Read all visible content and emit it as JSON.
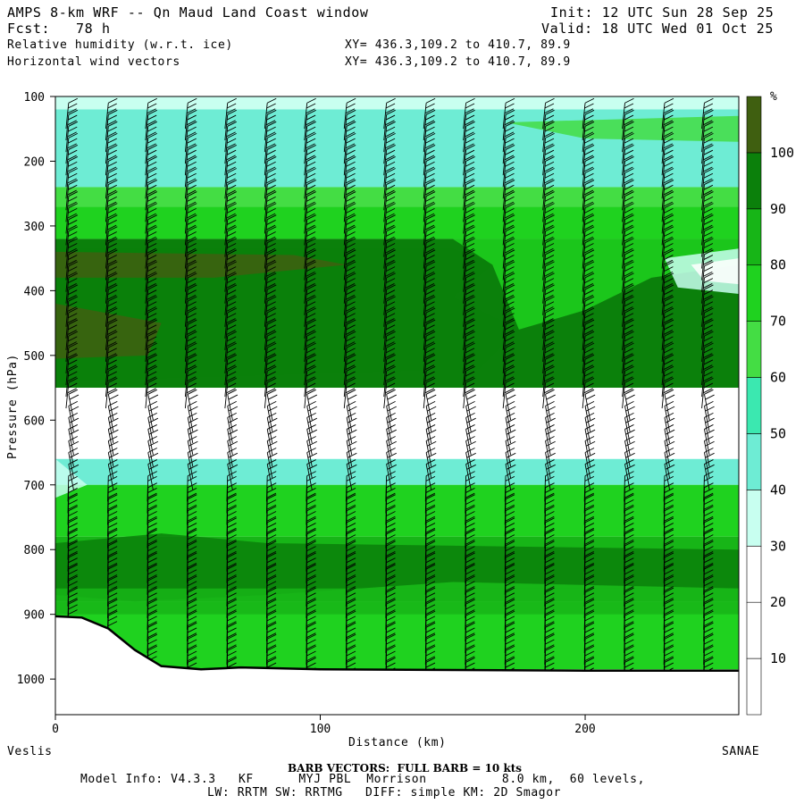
{
  "header": {
    "title": "AMPS 8-km WRF -- Qn Maud Land Coast window",
    "init": "Init: 12 UTC Sun 28 Sep 25",
    "fcst": "Fcst:   78 h",
    "valid": "Valid: 18 UTC Wed 01 Oct 25",
    "field1": "Relative humidity (w.r.t. ice)",
    "field1_xy": "XY= 436.3,109.2 to 410.7, 89.9",
    "field2": "Horizontal wind vectors",
    "field2_xy": "XY= 436.3,109.2 to 410.7, 89.9"
  },
  "chart_data": {
    "type": "heatmap",
    "title": "Relative humidity (w.r.t. ice) cross-section with horizontal wind barbs",
    "xlabel": "Distance (km)",
    "ylabel": "Pressure (hPa)",
    "xlim": [
      0,
      258
    ],
    "ylim": [
      100,
      1055
    ],
    "x_ticks": [
      0,
      100,
      200
    ],
    "y_ticks": [
      100,
      200,
      300,
      400,
      500,
      600,
      700,
      800,
      900,
      1000
    ],
    "x_end_labels": {
      "left": "Veslis",
      "right": "SANAE"
    },
    "colorbar": {
      "unit": "%",
      "levels": [
        10,
        20,
        30,
        40,
        50,
        60,
        70,
        80,
        90,
        100
      ],
      "colors": [
        "#ffffff",
        "#ffffff",
        "#ffffff",
        "#c8fff0",
        "#6eecd4",
        "#3be8b0",
        "#44dd44",
        "#1fd21f",
        "#17b517",
        "#0b800b",
        "#3f5f10"
      ]
    },
    "terrain_pressure": [
      {
        "x": 0,
        "p": 903
      },
      {
        "x": 10,
        "p": 905
      },
      {
        "x": 20,
        "p": 922
      },
      {
        "x": 30,
        "p": 955
      },
      {
        "x": 40,
        "p": 980
      },
      {
        "x": 55,
        "p": 985
      },
      {
        "x": 70,
        "p": 982
      },
      {
        "x": 100,
        "p": 985
      },
      {
        "x": 150,
        "p": 986
      },
      {
        "x": 200,
        "p": 987
      },
      {
        "x": 258,
        "p": 987
      }
    ],
    "rh_layers": [
      {
        "p_top": 100,
        "p_bot": 120,
        "rh": 35
      },
      {
        "p_top": 120,
        "p_bot": 240,
        "rh": 48
      },
      {
        "p_top": 240,
        "p_bot": 270,
        "rh": 62
      },
      {
        "p_top": 270,
        "p_bot": 320,
        "rh": 75
      },
      {
        "p_top": 320,
        "p_bot": 550,
        "rh": 92,
        "note": "extends to ~150 km, drier eastward"
      },
      {
        "p_top": 550,
        "p_bot": 660,
        "rh": 15
      },
      {
        "p_top": 660,
        "p_bot": 700,
        "rh": 48
      },
      {
        "p_top": 700,
        "p_bot": 780,
        "rh": 70
      },
      {
        "p_top": 780,
        "p_bot": 880,
        "rh": 88
      },
      {
        "p_top": 880,
        "p_bot": 985,
        "rh": 75
      }
    ],
    "barbs": {
      "spacing_km": 15,
      "full_barb_kts": 10
    }
  },
  "footer": {
    "barb_note": "BARB VECTORS:  FULL BARB = 10 kts",
    "model_info": "Model Info: V4.3.3   KF      MYJ PBL  Morrison          8.0 km,  60 levels,",
    "model_info2": "LW: RRTM SW: RRTMG   DIFF: simple KM: 2D Smagor"
  }
}
